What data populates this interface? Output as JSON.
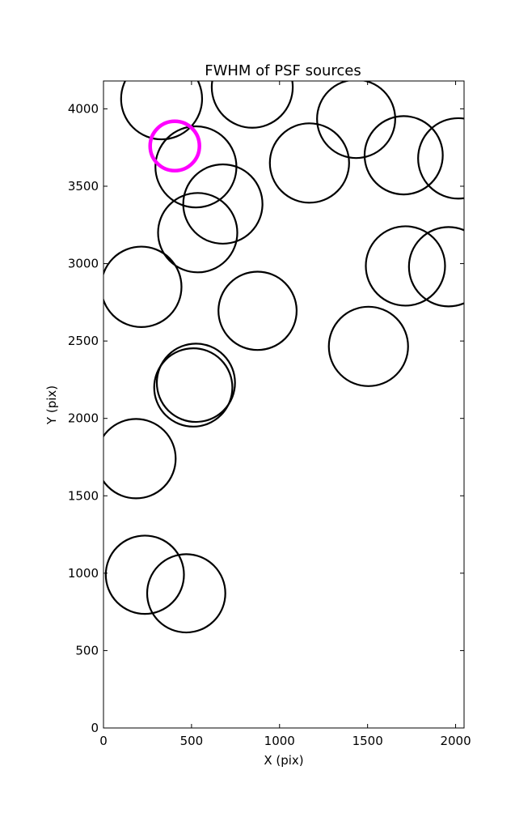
{
  "chart_data": {
    "type": "scatter",
    "title": "FWHM of PSF sources",
    "xlabel": "X (pix)",
    "ylabel": "Y (pix)",
    "xlim": [
      0,
      2048
    ],
    "ylim": [
      0,
      4180
    ],
    "xticks": [
      0,
      500,
      1000,
      1500,
      2000
    ],
    "yticks": [
      0,
      500,
      1000,
      1500,
      2000,
      2500,
      3000,
      3500,
      4000
    ],
    "grid": false,
    "marker": "circle",
    "series": [
      {
        "color": "#000000",
        "points": [
          {
            "x": 330,
            "y": 4065,
            "r": 230
          },
          {
            "x": 845,
            "y": 4140,
            "r": 230
          },
          {
            "x": 1435,
            "y": 3935,
            "r": 222
          },
          {
            "x": 525,
            "y": 3625,
            "r": 230
          },
          {
            "x": 678,
            "y": 3385,
            "r": 225
          },
          {
            "x": 1170,
            "y": 3650,
            "r": 225
          },
          {
            "x": 1705,
            "y": 3700,
            "r": 222
          },
          {
            "x": 2015,
            "y": 3680,
            "r": 228
          },
          {
            "x": 535,
            "y": 3200,
            "r": 225
          },
          {
            "x": 215,
            "y": 2850,
            "r": 228
          },
          {
            "x": 875,
            "y": 2695,
            "r": 222
          },
          {
            "x": 1715,
            "y": 2985,
            "r": 225
          },
          {
            "x": 1960,
            "y": 2980,
            "r": 225
          },
          {
            "x": 1505,
            "y": 2465,
            "r": 225
          },
          {
            "x": 510,
            "y": 2200,
            "r": 222
          },
          {
            "x": 525,
            "y": 2230,
            "r": 222
          },
          {
            "x": 185,
            "y": 1740,
            "r": 225
          },
          {
            "x": 235,
            "y": 990,
            "r": 222
          },
          {
            "x": 470,
            "y": 870,
            "r": 222
          }
        ]
      },
      {
        "color": "#ff00ff",
        "points": [
          {
            "x": 405,
            "y": 3760,
            "r": 140
          }
        ]
      }
    ]
  }
}
